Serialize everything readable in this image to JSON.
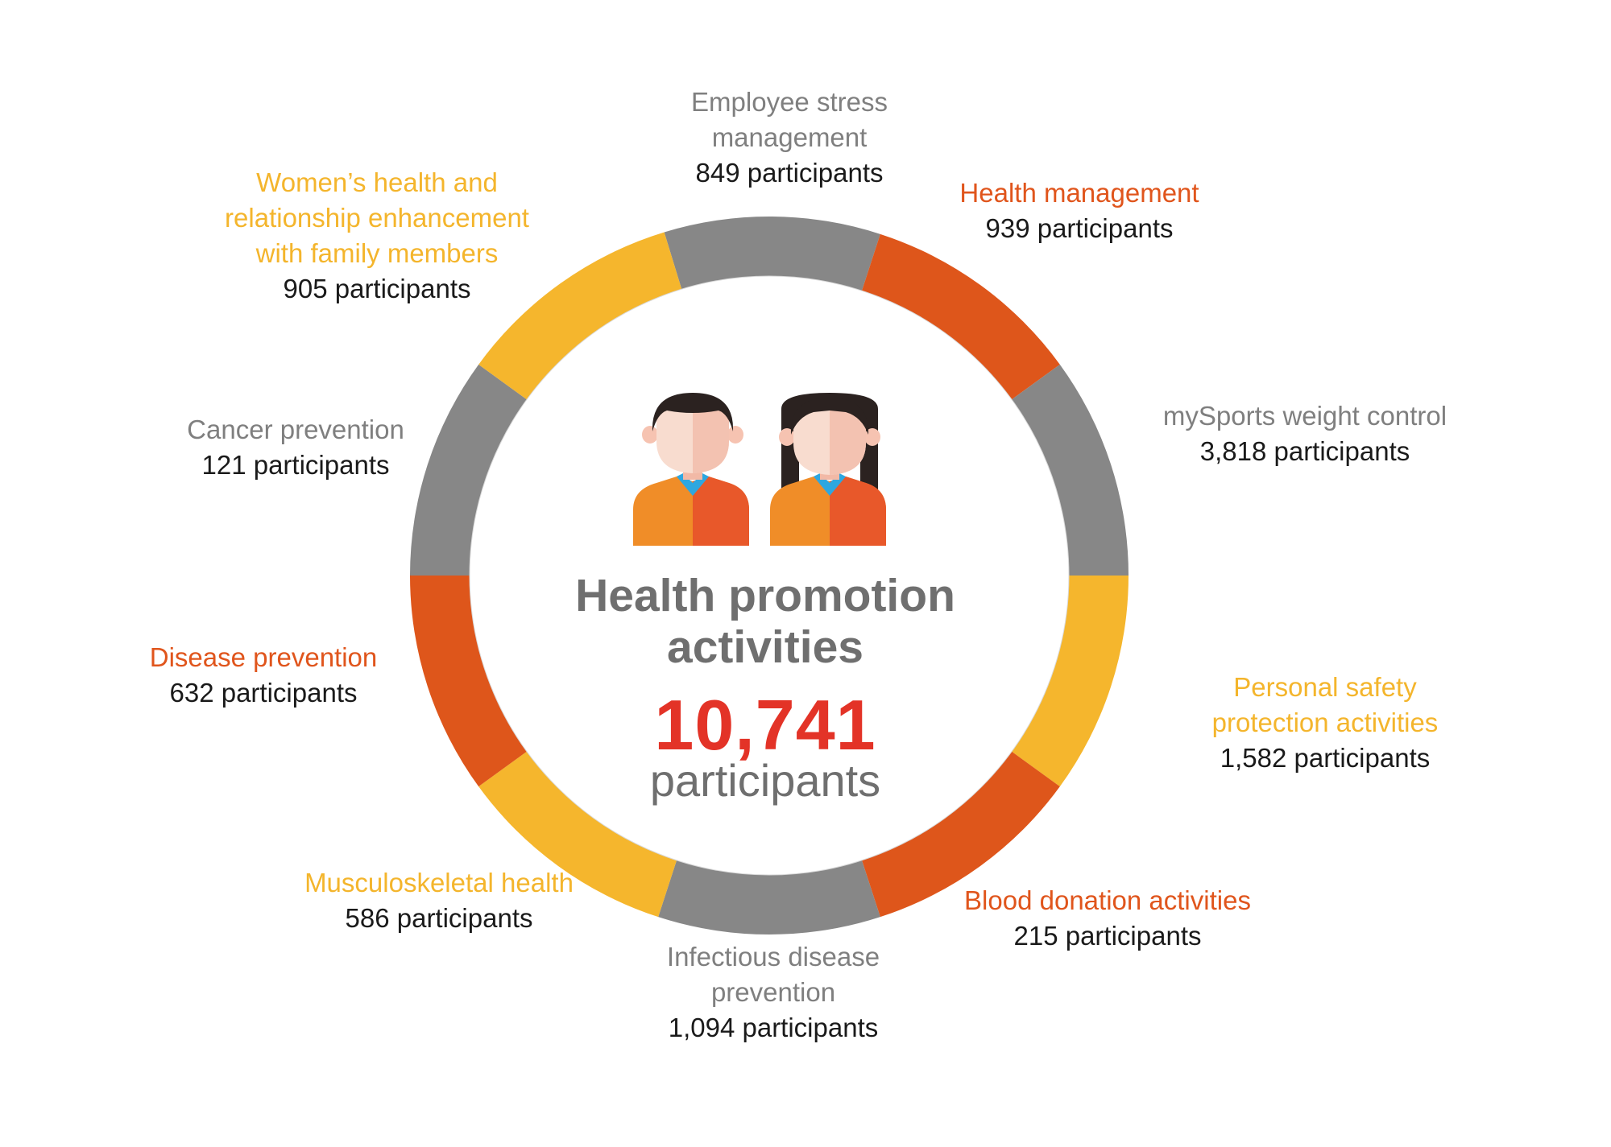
{
  "center": {
    "title_line1": "Health promotion",
    "title_line2": "activities",
    "total": "10,741",
    "total_unit": "participants"
  },
  "colors": {
    "gray": "#878787",
    "orange": "#de561b",
    "yellow": "#f5b62d",
    "total_red": "#e33327"
  },
  "icons": [
    "male-employee-icon",
    "female-employee-icon"
  ],
  "segments": [
    {
      "name": "employee-stress-management",
      "color": "gray"
    },
    {
      "name": "health-management",
      "color": "orange"
    },
    {
      "name": "mysports-weight-control",
      "color": "gray"
    },
    {
      "name": "personal-safety-protection",
      "color": "yellow"
    },
    {
      "name": "blood-donation",
      "color": "orange"
    },
    {
      "name": "infectious-disease-prevention",
      "color": "gray"
    },
    {
      "name": "musculoskeletal-health",
      "color": "yellow"
    },
    {
      "name": "disease-prevention",
      "color": "orange"
    },
    {
      "name": "cancer-prevention",
      "color": "gray"
    },
    {
      "name": "womens-health",
      "color": "yellow"
    }
  ],
  "activities": {
    "employee_stress": {
      "line1": "Employee stress",
      "line2": "management",
      "count": "849 participants"
    },
    "health_management": {
      "line1": "Health management",
      "count": "939 participants"
    },
    "mysports": {
      "line1": "mySports weight control",
      "count": "3,818 participants"
    },
    "personal_safety": {
      "line1": "Personal safety",
      "line2": "protection activities",
      "count": "1,582 participants"
    },
    "blood_donation": {
      "line1": "Blood donation activities",
      "count": "215 participants"
    },
    "infectious_disease": {
      "line1": "Infectious disease",
      "line2": "prevention",
      "count": "1,094 participants"
    },
    "musculoskeletal": {
      "line1": "Musculoskeletal health",
      "count": "586 participants"
    },
    "disease_prevention": {
      "line1": "Disease prevention",
      "count": "632 participants"
    },
    "cancer_prevention": {
      "line1": "Cancer prevention",
      "count": "121 participants"
    },
    "womens_health": {
      "line1": "Women’s health and",
      "line2": "relationship enhancement",
      "line3": "with family members",
      "count": "905 participants"
    }
  }
}
